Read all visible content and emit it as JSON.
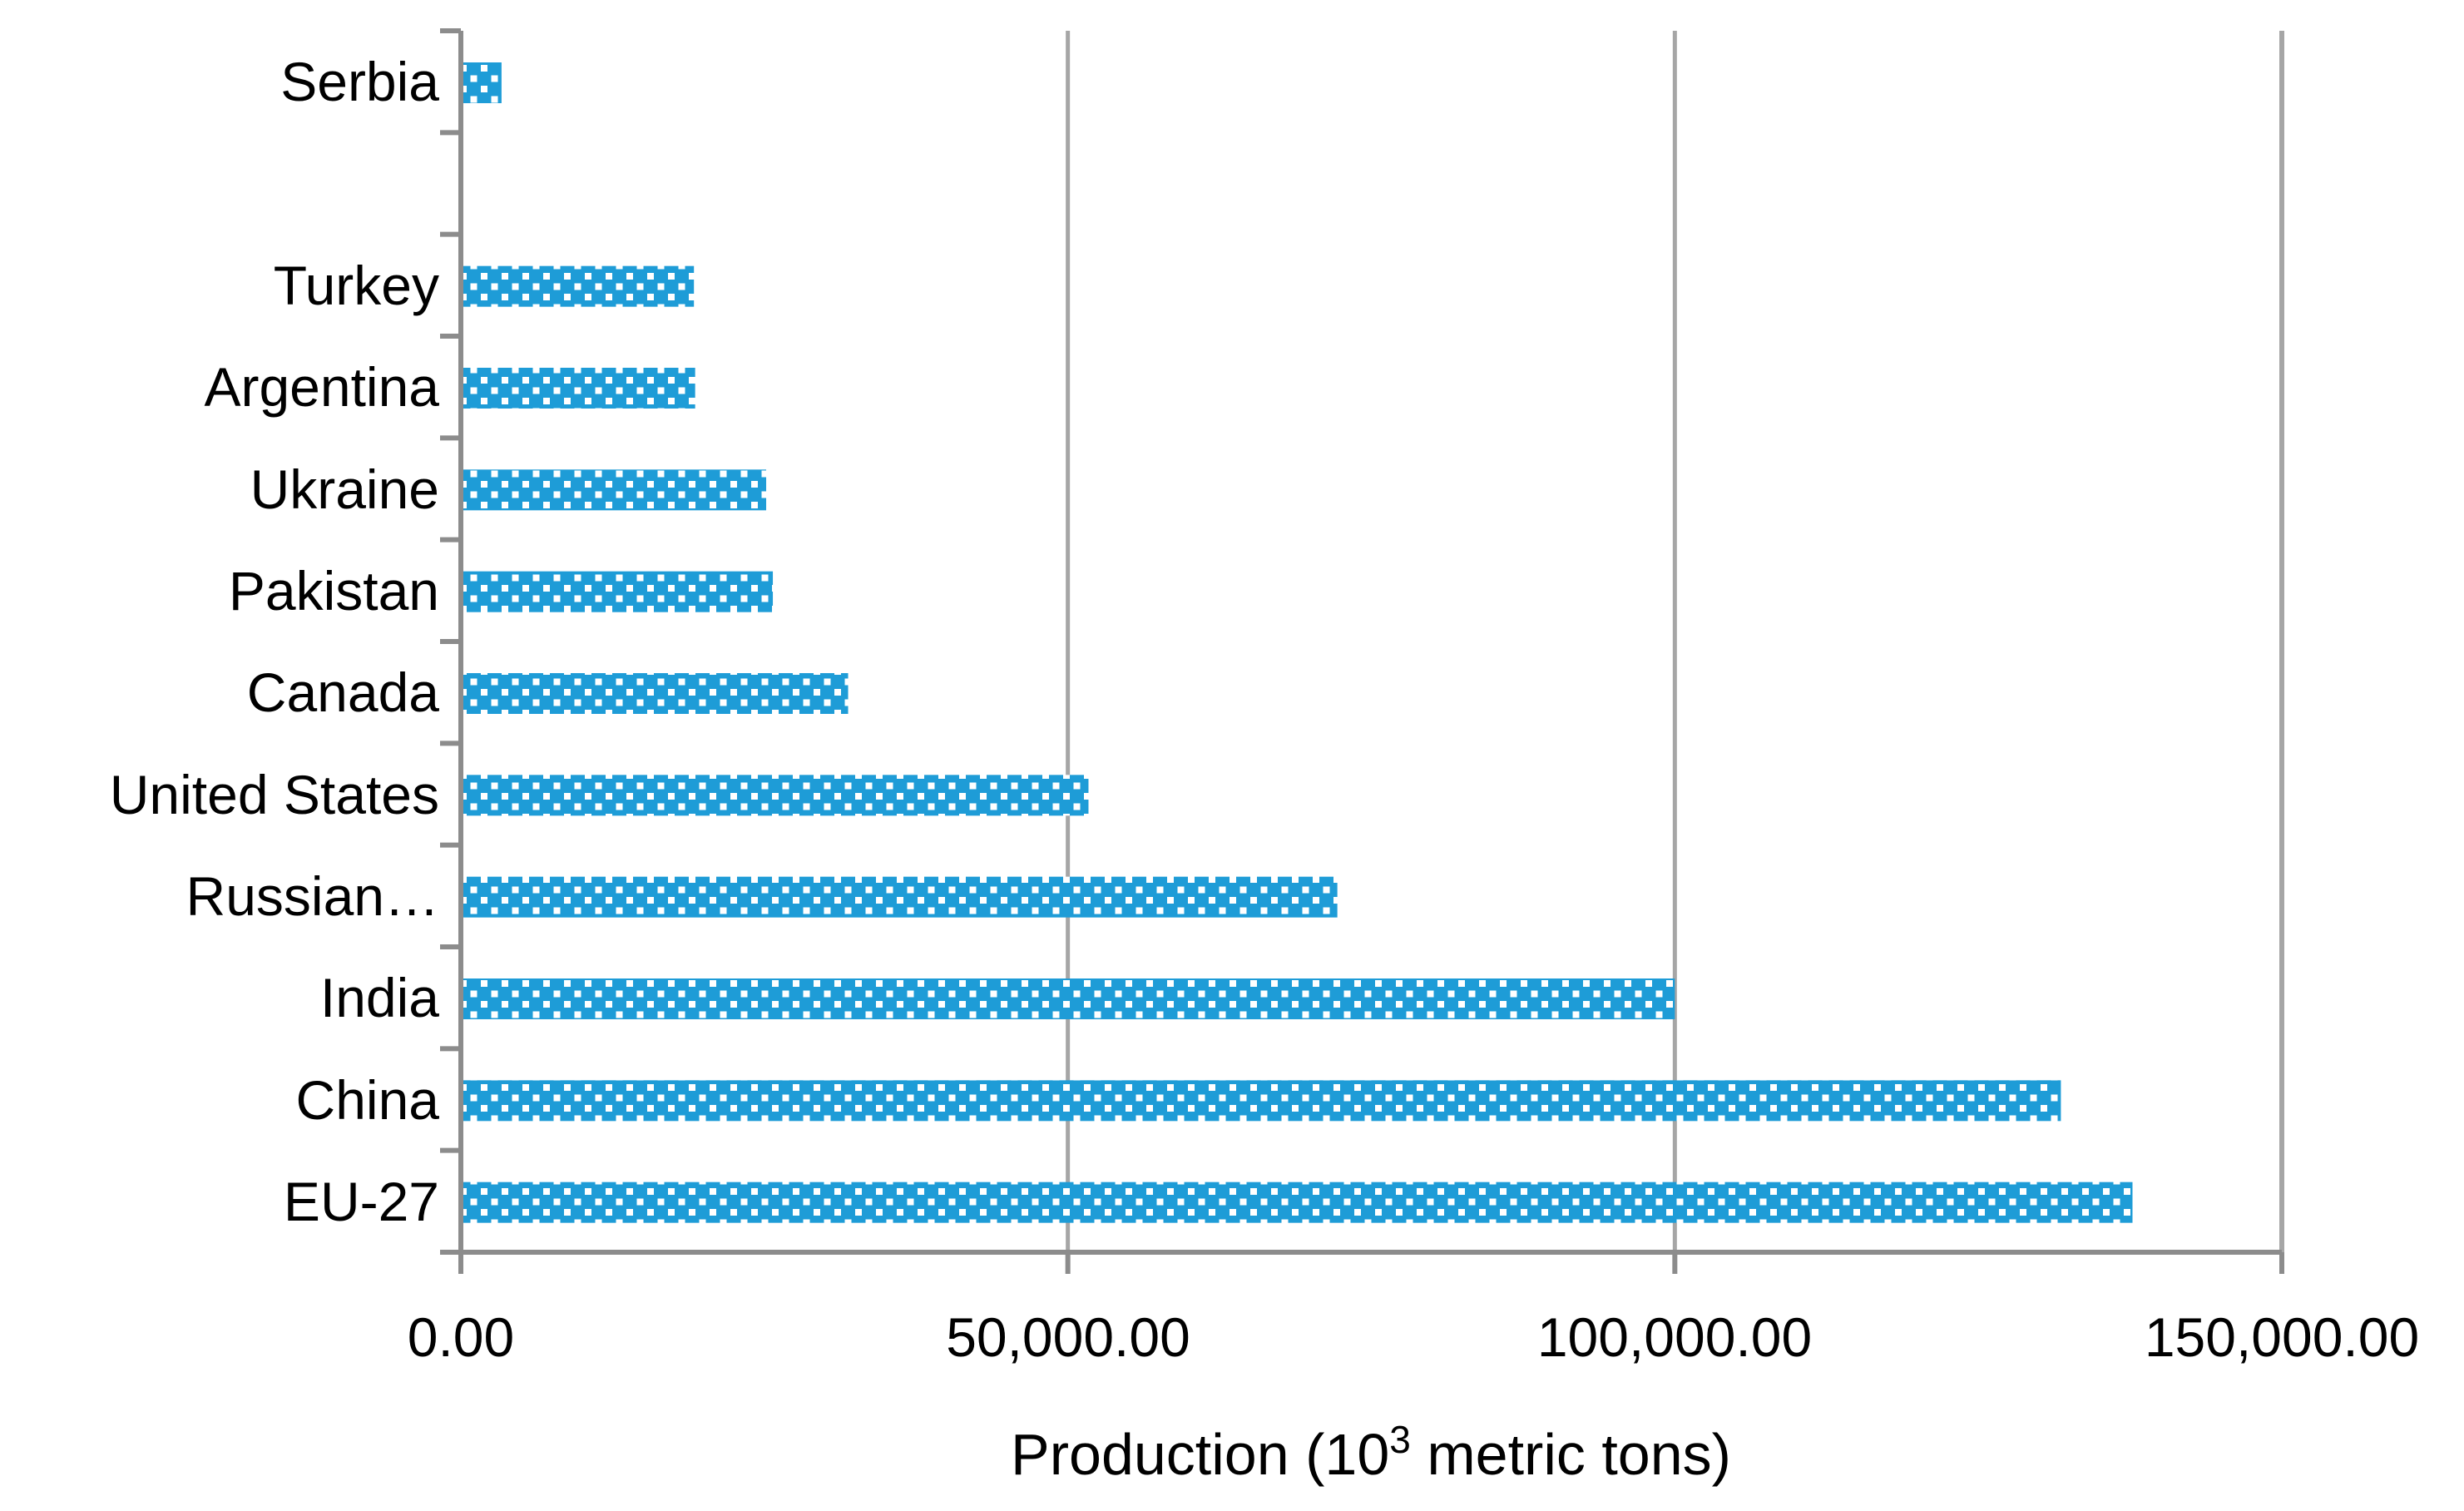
{
  "chart_data": {
    "type": "bar",
    "orientation": "horizontal",
    "title": "",
    "categories": [
      "Serbia",
      "",
      "Turkey",
      "Argentina",
      "Ukraine",
      "Pakistan",
      "Canada",
      "United States",
      "Russian…",
      "India",
      "China",
      "EU-27"
    ],
    "values": [
      3350,
      null,
      19200,
      19300,
      25150,
      25700,
      31900,
      51700,
      72200,
      100000,
      131800,
      137700
    ],
    "xlabel": "Production (10³ metric tons)",
    "xlabel_parts": {
      "pre": "Production (10",
      "sup": "3",
      "post": " metric tons)"
    },
    "ylabel": "",
    "xlim": [
      0,
      150000
    ],
    "x_ticks": [
      {
        "value": 0,
        "label": "0.00"
      },
      {
        "value": 50000,
        "label": "50,000.00"
      },
      {
        "value": 100000,
        "label": "100,000.00"
      },
      {
        "value": 150000,
        "label": "150,000.00"
      }
    ],
    "grid": "vertical-gridlines-at-x-ticks",
    "legend": "none",
    "bar_fill_pattern": "white-dotted-checker-on-blue",
    "colors": {
      "bar": "#1E9CD7",
      "pattern_dot": "#FFFFFF",
      "axis": "#8C8C8C",
      "gridline": "#A6A6A6",
      "text": "#000000",
      "background": "#FFFFFF"
    }
  }
}
